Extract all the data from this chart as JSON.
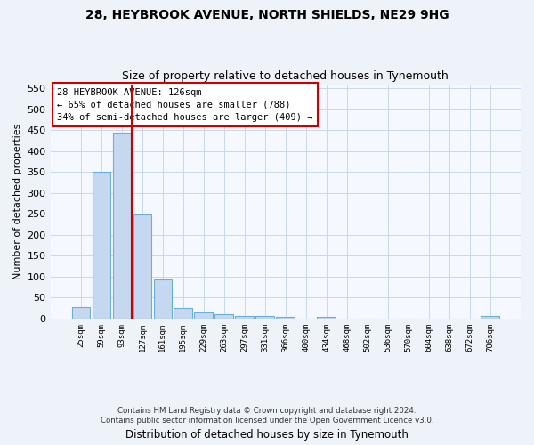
{
  "title1": "28, HEYBROOK AVENUE, NORTH SHIELDS, NE29 9HG",
  "title2": "Size of property relative to detached houses in Tynemouth",
  "xlabel": "Distribution of detached houses by size in Tynemouth",
  "ylabel": "Number of detached properties",
  "bar_labels": [
    "25sqm",
    "59sqm",
    "93sqm",
    "127sqm",
    "161sqm",
    "195sqm",
    "229sqm",
    "263sqm",
    "297sqm",
    "331sqm",
    "366sqm",
    "400sqm",
    "434sqm",
    "468sqm",
    "502sqm",
    "536sqm",
    "570sqm",
    "604sqm",
    "638sqm",
    "672sqm",
    "706sqm"
  ],
  "bar_values": [
    28,
    350,
    445,
    248,
    93,
    25,
    14,
    11,
    6,
    6,
    5,
    0,
    5,
    0,
    0,
    0,
    0,
    0,
    0,
    0,
    6
  ],
  "bar_color": "#c5d8ef",
  "bar_edge_color": "#6baed6",
  "ylim": [
    0,
    560
  ],
  "yticks": [
    0,
    50,
    100,
    150,
    200,
    250,
    300,
    350,
    400,
    450,
    500,
    550
  ],
  "vline_color": "#cc0000",
  "vline_pos": 2.5,
  "annotation_text_line1": "28 HEYBROOK AVENUE: 126sqm",
  "annotation_text_line2": "← 65% of detached houses are smaller (788)",
  "annotation_text_line3": "34% of semi-detached houses are larger (409) →",
  "footer1": "Contains HM Land Registry data © Crown copyright and database right 2024.",
  "footer2": "Contains public sector information licensed under the Open Government Licence v3.0.",
  "bg_color": "#eef3f9",
  "plot_bg_color": "#f5f9ff",
  "grid_color": "#c8d8ec"
}
